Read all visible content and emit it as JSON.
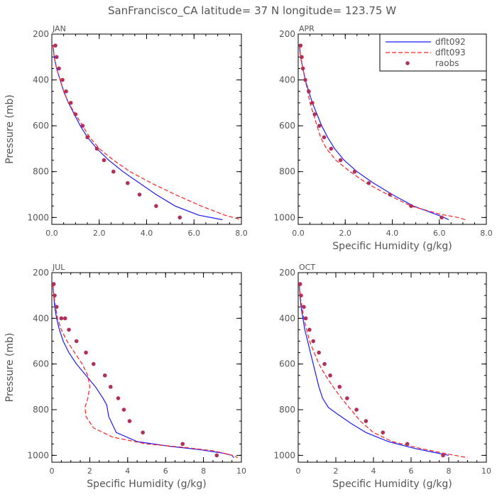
{
  "figure_title": "SanFrancisco_CA  latitude= 37 N longitude= 123.75 W",
  "legend": [
    {
      "label": "dflt092",
      "style": "blue-solid-line"
    },
    {
      "label": "dflt093",
      "style": "red-dashed-line"
    },
    {
      "label": "raobs",
      "style": "purple-dot"
    }
  ],
  "colors": {
    "dflt092": "#1a1aff",
    "dflt093": "#ff2020",
    "raobs": "#b0305a",
    "axes": "#000000",
    "text": "#555555"
  },
  "chart_data": [
    {
      "type": "line",
      "title": "JAN",
      "xlabel": "Specific Humidity (g/kg)",
      "ylabel": "Pressure (mb)",
      "xlim": [
        0,
        8
      ],
      "ylim": [
        1030,
        200
      ],
      "xticks": [
        0,
        2,
        4,
        6,
        8
      ],
      "xtick_labels": [
        "0.0",
        "2.0",
        "4.0",
        "6.0",
        "8.0"
      ],
      "yticks": [
        200,
        400,
        600,
        800,
        1000
      ],
      "ytick_labels": [
        "200",
        "400",
        "600",
        "800",
        "1000"
      ],
      "show_xlabel": false,
      "show_ylabel": true,
      "series": [
        {
          "name": "dflt092",
          "kind": "line",
          "style": "solid",
          "x": [
            0.05,
            0.1,
            0.2,
            0.35,
            0.5,
            0.7,
            0.95,
            1.2,
            1.5,
            1.9,
            2.4,
            3.0,
            3.7,
            4.4,
            5.2,
            6.2,
            7.2
          ],
          "y": [
            250,
            300,
            350,
            400,
            450,
            500,
            550,
            600,
            650,
            700,
            750,
            800,
            850,
            900,
            950,
            990,
            1010
          ]
        },
        {
          "name": "dflt093",
          "kind": "line",
          "style": "dashed",
          "x": [
            0.05,
            0.1,
            0.2,
            0.35,
            0.5,
            0.7,
            1.0,
            1.3,
            1.6,
            2.0,
            2.6,
            3.3,
            4.2,
            5.2,
            6.3,
            7.3,
            8.0
          ],
          "y": [
            250,
            300,
            350,
            400,
            450,
            500,
            550,
            600,
            650,
            700,
            750,
            800,
            850,
            900,
            950,
            990,
            1010
          ]
        },
        {
          "name": "raobs",
          "kind": "scatter",
          "x": [
            0.15,
            0.2,
            0.3,
            0.45,
            0.6,
            0.8,
            1.0,
            1.3,
            1.5,
            1.9,
            2.2,
            2.6,
            3.2,
            3.7,
            4.4,
            5.4
          ],
          "y": [
            250,
            300,
            350,
            400,
            450,
            500,
            550,
            600,
            650,
            700,
            750,
            800,
            850,
            900,
            950,
            1000
          ]
        }
      ]
    },
    {
      "type": "line",
      "title": "APR",
      "xlabel": "Specific Humidity (g/kg)",
      "ylabel": "Pressure (mb)",
      "xlim": [
        0,
        8
      ],
      "ylim": [
        1030,
        200
      ],
      "xticks": [
        0,
        2,
        4,
        6,
        8
      ],
      "xtick_labels": [
        "0.0",
        "2.0",
        "4.0",
        "6.0",
        "8.0"
      ],
      "yticks": [
        200,
        400,
        600,
        800,
        1000
      ],
      "ytick_labels": [
        "200",
        "400",
        "600",
        "800",
        "1000"
      ],
      "show_xlabel": true,
      "show_ylabel": false,
      "series": [
        {
          "name": "dflt092",
          "kind": "line",
          "style": "solid",
          "x": [
            0.05,
            0.1,
            0.2,
            0.3,
            0.45,
            0.6,
            0.8,
            1.0,
            1.25,
            1.55,
            1.95,
            2.5,
            3.2,
            4.0,
            4.9,
            5.7,
            6.2,
            6.4
          ],
          "y": [
            250,
            300,
            350,
            400,
            450,
            500,
            550,
            600,
            650,
            700,
            750,
            800,
            850,
            900,
            950,
            980,
            1000,
            1010
          ]
        },
        {
          "name": "dflt093",
          "kind": "line",
          "style": "dashed",
          "x": [
            0.05,
            0.1,
            0.2,
            0.3,
            0.4,
            0.5,
            0.65,
            0.8,
            0.95,
            1.2,
            1.6,
            2.2,
            2.9,
            3.8,
            4.8,
            6.0,
            6.8,
            7.1
          ],
          "y": [
            250,
            300,
            350,
            400,
            450,
            500,
            550,
            600,
            650,
            700,
            750,
            800,
            850,
            900,
            950,
            985,
            1000,
            1010
          ]
        },
        {
          "name": "raobs",
          "kind": "scatter",
          "x": [
            0.1,
            0.15,
            0.2,
            0.3,
            0.45,
            0.6,
            0.7,
            0.9,
            1.1,
            1.4,
            1.8,
            2.4,
            3.0,
            3.9,
            4.8,
            6.1
          ],
          "y": [
            250,
            300,
            350,
            400,
            450,
            500,
            550,
            600,
            650,
            700,
            750,
            800,
            850,
            900,
            950,
            1000
          ]
        }
      ]
    },
    {
      "type": "line",
      "title": "JUL",
      "xlabel": "Specific Humidity (g/kg)",
      "ylabel": "Pressure (mb)",
      "xlim": [
        0,
        10
      ],
      "ylim": [
        1030,
        200
      ],
      "xticks": [
        0,
        2,
        4,
        6,
        8,
        10
      ],
      "xtick_labels": [
        "0",
        "2",
        "4",
        "6",
        "8",
        "10"
      ],
      "yticks": [
        200,
        400,
        600,
        800,
        1000
      ],
      "ytick_labels": [
        "200",
        "400",
        "600",
        "800",
        "1000"
      ],
      "show_xlabel": true,
      "show_ylabel": true,
      "series": [
        {
          "name": "dflt092",
          "kind": "line",
          "style": "solid",
          "x": [
            0.05,
            0.1,
            0.15,
            0.25,
            0.4,
            0.6,
            0.9,
            1.3,
            1.8,
            2.3,
            2.7,
            2.9,
            3.0,
            3.4,
            4.5,
            6.2,
            7.8,
            9.0,
            9.5,
            9.6
          ],
          "y": [
            250,
            300,
            350,
            400,
            450,
            500,
            550,
            600,
            650,
            700,
            750,
            780,
            830,
            900,
            940,
            960,
            975,
            990,
            1000,
            1010
          ]
        },
        {
          "name": "dflt093",
          "kind": "line",
          "style": "dashed",
          "x": [
            0.05,
            0.1,
            0.2,
            0.3,
            0.5,
            0.8,
            1.2,
            1.6,
            1.9,
            2.0,
            1.9,
            1.75,
            1.8,
            2.2,
            3.2,
            5.0,
            7.0,
            8.5,
            9.3,
            9.7,
            9.8
          ],
          "y": [
            250,
            300,
            350,
            400,
            450,
            500,
            550,
            600,
            650,
            700,
            750,
            790,
            830,
            880,
            920,
            950,
            965,
            980,
            995,
            1005,
            1010
          ]
        },
        {
          "name": "raobs",
          "kind": "scatter",
          "x": [
            0.1,
            0.15,
            0.25,
            0.5,
            0.7,
            0.9,
            1.3,
            1.8,
            2.2,
            2.8,
            3.1,
            3.5,
            3.8,
            4.1,
            4.8,
            6.9,
            8.7
          ],
          "y": [
            250,
            300,
            350,
            400,
            400,
            450,
            500,
            550,
            600,
            650,
            700,
            750,
            800,
            850,
            900,
            950,
            1000
          ]
        }
      ]
    },
    {
      "type": "line",
      "title": "OCT",
      "xlabel": "Specific Humidity (g/kg)",
      "ylabel": "Pressure (mb)",
      "xlim": [
        0,
        10
      ],
      "ylim": [
        1030,
        200
      ],
      "xticks": [
        0,
        2,
        4,
        6,
        8,
        10
      ],
      "xtick_labels": [
        "0",
        "2",
        "4",
        "6",
        "8",
        "10"
      ],
      "yticks": [
        200,
        400,
        600,
        800,
        1000
      ],
      "ytick_labels": [
        "200",
        "400",
        "600",
        "800",
        "1000"
      ],
      "show_xlabel": true,
      "show_ylabel": false,
      "series": [
        {
          "name": "dflt092",
          "kind": "line",
          "style": "solid",
          "x": [
            0.05,
            0.1,
            0.15,
            0.25,
            0.35,
            0.5,
            0.65,
            0.8,
            0.95,
            1.1,
            1.3,
            1.6,
            2.1,
            2.8,
            3.6,
            4.8,
            6.2,
            7.4,
            8.0
          ],
          "y": [
            250,
            300,
            350,
            400,
            450,
            500,
            550,
            600,
            650,
            700,
            750,
            790,
            820,
            860,
            900,
            940,
            970,
            990,
            1000
          ]
        },
        {
          "name": "dflt093",
          "kind": "line",
          "style": "dashed",
          "x": [
            0.05,
            0.1,
            0.2,
            0.3,
            0.45,
            0.6,
            0.85,
            1.1,
            1.45,
            1.85,
            2.3,
            2.8,
            3.3,
            4.0,
            5.0,
            6.5,
            8.0,
            9.0
          ],
          "y": [
            250,
            300,
            350,
            400,
            450,
            500,
            550,
            600,
            650,
            700,
            750,
            800,
            850,
            900,
            940,
            970,
            995,
            1010
          ]
        },
        {
          "name": "raobs",
          "kind": "scatter",
          "x": [
            0.1,
            0.15,
            0.3,
            0.4,
            0.6,
            0.8,
            1.1,
            1.4,
            1.7,
            2.2,
            2.6,
            3.1,
            3.6,
            4.5,
            5.8,
            7.7
          ],
          "y": [
            250,
            300,
            350,
            400,
            450,
            500,
            550,
            600,
            650,
            700,
            750,
            800,
            850,
            900,
            950,
            1000
          ]
        }
      ]
    }
  ]
}
